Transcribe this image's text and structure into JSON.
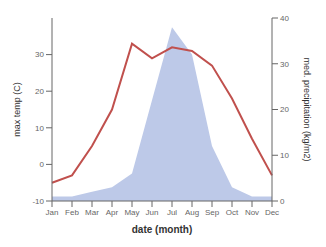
{
  "chart_data": {
    "type": "line",
    "xlabel": "date (month)",
    "ylabel": "max temp (C)",
    "y2label": "med. precipitation (kg/m2)",
    "categories": [
      "Jan",
      "Feb",
      "Mar",
      "Apr",
      "May",
      "Jun",
      "Jul",
      "Aug",
      "Sep",
      "Oct",
      "Nov",
      "Dec"
    ],
    "series": [
      {
        "type": "area",
        "axis": "y2",
        "color": "#bdc9e8",
        "values": [
          1,
          1,
          2,
          3,
          6,
          22,
          38,
          32,
          12,
          3,
          1,
          1
        ]
      },
      {
        "type": "line",
        "color": "#c0504d",
        "values": [
          -5,
          -3,
          5,
          15,
          33,
          29,
          32,
          31,
          27,
          18,
          7,
          -3
        ]
      }
    ],
    "ylim": [
      -10,
      40
    ],
    "yticks": [
      -10,
      0,
      10,
      20,
      30
    ],
    "y2lim": [
      0,
      40
    ],
    "y2ticks": [
      0,
      10,
      20,
      30,
      40
    ],
    "grid": false
  }
}
